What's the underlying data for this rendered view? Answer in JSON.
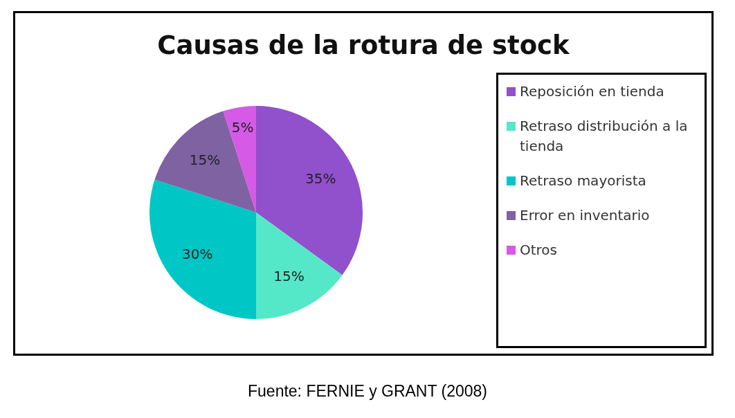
{
  "chart_data": {
    "type": "pie",
    "title": "Causas de la rotura de stock",
    "categories": [
      "Reposición en tienda",
      "Retraso distribución a la tienda",
      "Retraso mayorista",
      "Error en inventario",
      "Otros"
    ],
    "values": [
      35,
      15,
      30,
      15,
      5
    ],
    "colors": [
      "#9150cc",
      "#55e8c8",
      "#00c6c6",
      "#7f62a2",
      "#d55ae6"
    ],
    "value_labels": [
      "35%",
      "15%",
      "30%",
      "15%",
      "5%"
    ],
    "legend": "right",
    "annotations": [
      "Fuente: FERNIE y GRANT (2008)"
    ]
  }
}
